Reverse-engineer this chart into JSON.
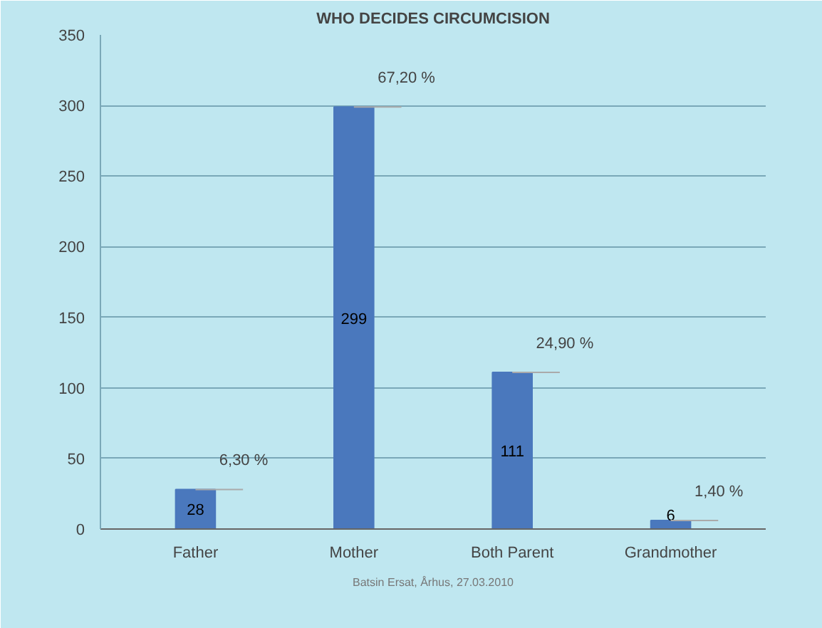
{
  "chart_data": {
    "type": "bar",
    "title": "WHO DECIDES CIRCUMCISION",
    "categories": [
      "Father",
      "Mother",
      "Both Parent",
      "Grandmother"
    ],
    "values": [
      28,
      299,
      111,
      6
    ],
    "color": "#4a78bd",
    "ylim": [
      0,
      350
    ],
    "yticks": [
      0,
      50,
      100,
      150,
      200,
      250,
      300,
      350
    ],
    "grid": "y",
    "data_labels": true,
    "annotations": [
      {
        "text": "6,30 %",
        "x": "Father",
        "y": 28
      },
      {
        "text": "67,20 %",
        "x": "Mother",
        "y": 299
      },
      {
        "text": "24,90 %",
        "x": "Both Parent",
        "y": 111
      },
      {
        "text": "1,40 %",
        "x": "Grandmother",
        "y": 6
      },
      "Batsin Ersat, Århus, 27.03.2010"
    ]
  }
}
